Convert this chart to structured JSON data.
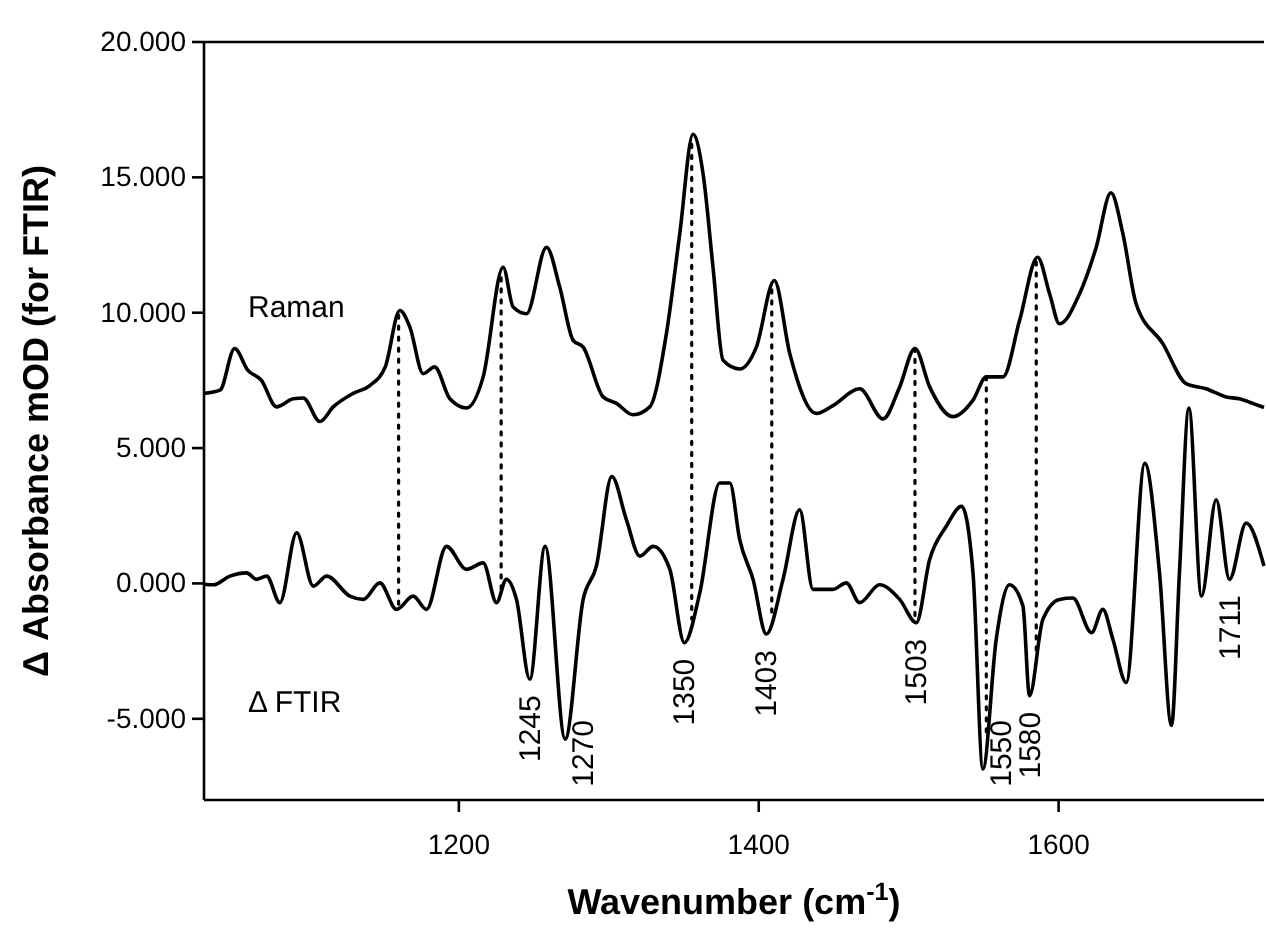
{
  "chart_data": {
    "type": "line",
    "xlabel": "Wavenumber (cm$^{-1}$)",
    "ylabel": "Δ Absorbance mOD (for FTIR)",
    "xlim": [
      1030,
      1737
    ],
    "ylim": [
      -8,
      20
    ],
    "xticks": [
      1200,
      1400,
      1600
    ],
    "yticks": [
      {
        "value": -5,
        "label": "-5.000"
      },
      {
        "value": 0,
        "label": "0.000"
      },
      {
        "value": 5,
        "label": "5.000"
      },
      {
        "value": 10,
        "label": "10.000"
      },
      {
        "value": 15,
        "label": "15.000"
      },
      {
        "value": 20,
        "label": "20.000"
      }
    ],
    "grid": false,
    "legend": false,
    "marker": "none",
    "line_style": "solid",
    "series": [
      {
        "name": "Raman",
        "color": "#000000",
        "x": [
          1030,
          1040.7,
          1050.4,
          1059.3,
          1068.2,
          1078.4,
          1089.6,
          1096.2,
          1107.3,
          1116.2,
          1129.5,
          1140.6,
          1150.9,
          1160.6,
          1167.3,
          1176.2,
          1183.8,
          1194,
          1205.1,
          1216.2,
          1229.5,
          1236.2,
          1245.1,
          1258.4,
          1267.3,
          1276.2,
          1282.9,
          1296.2,
          1305.1,
          1316.2,
          1327.3,
          1338.4,
          1347.3,
          1356.2,
          1362.9,
          1369.5,
          1376.2,
          1387.3,
          1398.4,
          1410.4,
          1420.7,
          1438.4,
          1449.5,
          1467.3,
          1482.9,
          1494,
          1504.2,
          1514,
          1529.5,
          1542.9,
          1551.8,
          1562.9,
          1574,
          1586,
          1594,
          1600.6,
          1614,
          1625.1,
          1634.9,
          1642.9,
          1651.7,
          1669.5,
          1685.1,
          1698.4,
          1711.7,
          1720.6,
          1729.5,
          1737
        ],
        "values": [
          7.02,
          7.14,
          8.68,
          7.87,
          7.51,
          6.52,
          6.82,
          6.85,
          5.98,
          6.52,
          7.02,
          7.31,
          8.0,
          10.08,
          9.47,
          7.75,
          8.0,
          6.82,
          6.48,
          7.63,
          11.68,
          10.21,
          9.96,
          12.42,
          10.94,
          8.98,
          8.73,
          6.89,
          6.65,
          6.23,
          6.52,
          9.22,
          12.91,
          16.59,
          15.12,
          11.68,
          8.24,
          7.92,
          8.73,
          11.19,
          8.49,
          6.28,
          6.57,
          7.19,
          6.08,
          7.26,
          8.68,
          7.26,
          6.16,
          6.77,
          7.63,
          7.63,
          9.72,
          12.05,
          10.7,
          9.59,
          10.7,
          12.42,
          14.43,
          12.91,
          10.33,
          8.86,
          7.38,
          7.19,
          6.89,
          6.82,
          6.65,
          6.5
        ]
      },
      {
        "name": "Δ FTIR",
        "color": "#000000",
        "x": [
          1030,
          1036.2,
          1047.3,
          1058.4,
          1065.1,
          1071.8,
          1080.6,
          1091.8,
          1102.9,
          1111.8,
          1127.3,
          1136.2,
          1147.3,
          1158.4,
          1169.5,
          1178.4,
          1191.7,
          1205.1,
          1216.2,
          1225.1,
          1231.7,
          1238.4,
          1247.3,
          1257.5,
          1270.9,
          1282.9,
          1291.7,
          1302,
          1311.7,
          1320.7,
          1329.6,
          1340.7,
          1350.4,
          1360.7,
          1374,
          1380.7,
          1387.3,
          1396.2,
          1405.1,
          1416.2,
          1427.3,
          1436.2,
          1449.5,
          1458.4,
          1467.3,
          1480.6,
          1494,
          1505.1,
          1514,
          1525.1,
          1535.3,
          1542.9,
          1549.5,
          1558.4,
          1567.3,
          1576.2,
          1580.6,
          1589.5,
          1600.6,
          1609.5,
          1622,
          1629.5,
          1636.2,
          1645.1,
          1657.5,
          1667.3,
          1675.3,
          1680.6,
          1686.9,
          1695.3,
          1705.1,
          1714,
          1725.1,
          1737
        ],
        "values": [
          -0.03,
          -0.05,
          0.27,
          0.39,
          0.15,
          0.27,
          -0.71,
          1.87,
          -0.1,
          0.27,
          -0.47,
          -0.59,
          0.02,
          -0.96,
          -0.47,
          -0.96,
          1.37,
          0.52,
          0.76,
          -0.71,
          0.15,
          -0.59,
          -3.54,
          1.37,
          -5.75,
          -0.59,
          0.64,
          3.95,
          2.36,
          1.01,
          1.37,
          0.52,
          -2.19,
          -0.34,
          3.71,
          3.71,
          1.62,
          0.15,
          -1.87,
          0.15,
          2.72,
          -0.22,
          -0.22,
          0.02,
          -0.71,
          -0.05,
          -0.59,
          -1.45,
          0.88,
          2.11,
          2.85,
          0.39,
          -6.85,
          -2.06,
          -0.05,
          -0.83,
          -4.15,
          -1.33,
          -0.59,
          -0.54,
          -1.82,
          -0.96,
          -2.06,
          -3.66,
          4.44,
          0.39,
          -5.25,
          0.39,
          6.48,
          -0.47,
          3.09,
          0.15,
          2.23,
          0.64
        ]
      }
    ],
    "ref_lines": [
      {
        "axis": "x",
        "value": 1159.8,
        "line_style": "dotted"
      },
      {
        "axis": "x",
        "value": 1228.2,
        "line_style": "dotted"
      },
      {
        "axis": "x",
        "value": 1355.3,
        "line_style": "dotted"
      },
      {
        "axis": "x",
        "value": 1408.7,
        "line_style": "dotted"
      },
      {
        "axis": "x",
        "value": 1504.2,
        "line_style": "dotted"
      },
      {
        "axis": "x",
        "value": 1551.8,
        "line_style": "dotted"
      },
      {
        "axis": "x",
        "value": 1585.1,
        "line_style": "dotted"
      }
    ],
    "annotations": [
      {
        "text": "1245",
        "x": 1247.3,
        "y": -3.54
      },
      {
        "text": "1270",
        "x": 1270.9,
        "y": -5.75
      },
      {
        "text": "1350",
        "x": 1350.4,
        "y": -2.19
      },
      {
        "text": "1403",
        "x": 1405.1,
        "y": -1.87
      },
      {
        "text": "1503",
        "x": 1505.1,
        "y": -1.45
      },
      {
        "text": "1550",
        "x": 1549.5,
        "y": -6.85
      },
      {
        "text": "1580",
        "x": 1580.6,
        "y": -4.15
      },
      {
        "text": "1711",
        "x": 1714,
        "y": 0.15
      }
    ]
  }
}
